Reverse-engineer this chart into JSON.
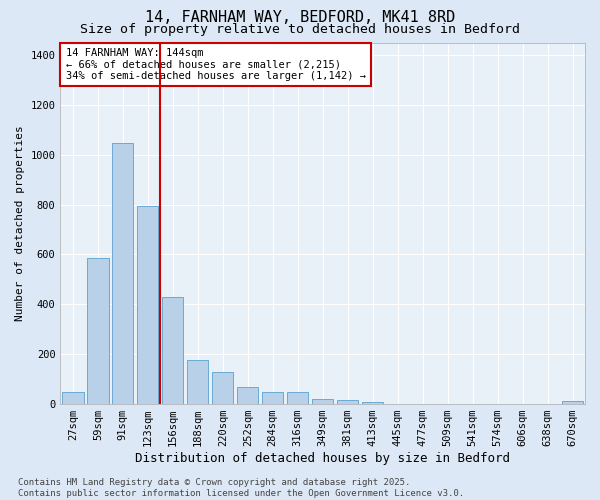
{
  "title1": "14, FARNHAM WAY, BEDFORD, MK41 8RD",
  "title2": "Size of property relative to detached houses in Bedford",
  "xlabel": "Distribution of detached houses by size in Bedford",
  "ylabel": "Number of detached properties",
  "categories": [
    "27sqm",
    "59sqm",
    "91sqm",
    "123sqm",
    "156sqm",
    "188sqm",
    "220sqm",
    "252sqm",
    "284sqm",
    "316sqm",
    "349sqm",
    "381sqm",
    "413sqm",
    "445sqm",
    "477sqm",
    "509sqm",
    "541sqm",
    "574sqm",
    "606sqm",
    "638sqm",
    "670sqm"
  ],
  "values": [
    48,
    585,
    1047,
    793,
    430,
    178,
    128,
    70,
    48,
    50,
    22,
    18,
    10,
    0,
    0,
    0,
    0,
    0,
    0,
    0,
    12
  ],
  "bar_color": "#b8d0e8",
  "bar_edge_color": "#6aaad4",
  "vline_color": "#cc0000",
  "annotation_text": "14 FARNHAM WAY: 144sqm\n← 66% of detached houses are smaller (2,215)\n34% of semi-detached houses are larger (1,142) →",
  "annotation_box_color": "#ffffff",
  "annotation_box_edge_color": "#cc0000",
  "ylim": [
    0,
    1450
  ],
  "yticks": [
    0,
    200,
    400,
    600,
    800,
    1000,
    1200,
    1400
  ],
  "bg_color": "#dce8f5",
  "plot_bg_color": "#e8f0f8",
  "footer": "Contains HM Land Registry data © Crown copyright and database right 2025.\nContains public sector information licensed under the Open Government Licence v3.0.",
  "title1_fontsize": 11,
  "title2_fontsize": 9.5,
  "xlabel_fontsize": 9,
  "ylabel_fontsize": 8,
  "tick_fontsize": 7.5,
  "annot_fontsize": 7.5,
  "footer_fontsize": 6.5
}
